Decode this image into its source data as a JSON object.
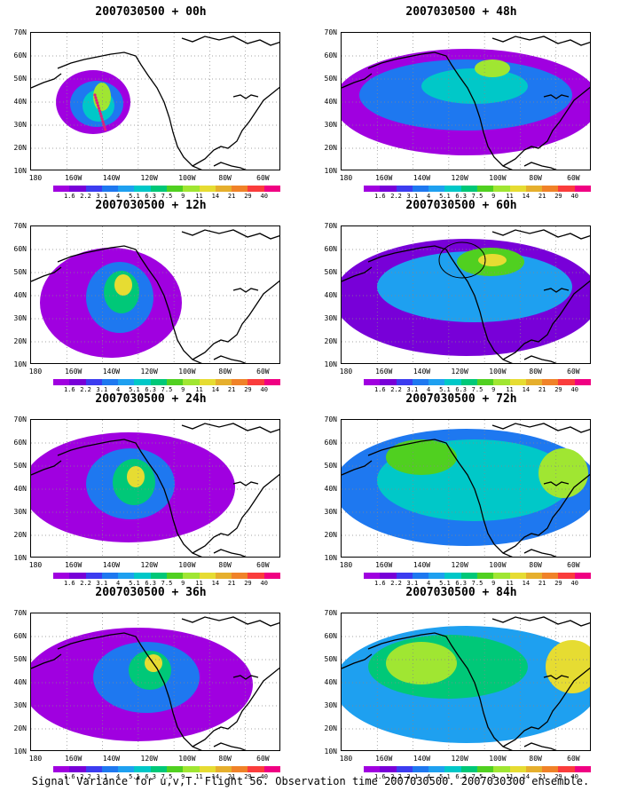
{
  "panels": [
    {
      "id": "p00",
      "title": "2007030500 + 00h"
    },
    {
      "id": "p48",
      "title": "2007030500 + 48h"
    },
    {
      "id": "p12",
      "title": "2007030500 + 12h"
    },
    {
      "id": "p60",
      "title": "2007030500 + 60h"
    },
    {
      "id": "p24",
      "title": "2007030500 + 24h"
    },
    {
      "id": "p72",
      "title": "2007030500 + 72h"
    },
    {
      "id": "p36",
      "title": "2007030500 + 36h"
    },
    {
      "id": "p84",
      "title": "2007030500 + 84h"
    }
  ],
  "lat_labels": [
    "70N",
    "60N",
    "50N",
    "40N",
    "30N",
    "20N",
    "10N"
  ],
  "lon_labels": [
    "180",
    "160W",
    "140W",
    "120W",
    "100W",
    "80W",
    "60W"
  ],
  "colorbar": {
    "labels": [
      "1.6",
      "2.2",
      "3.1",
      "4",
      "5.1",
      "6.3",
      "7.5",
      "9",
      "11",
      "14",
      "21",
      "29",
      "40"
    ],
    "colors": [
      "#a000e0",
      "#7800d8",
      "#3c3cf0",
      "#1e78f0",
      "#1ea0f0",
      "#00c8c8",
      "#00c878",
      "#50d020",
      "#a0e632",
      "#e6dc32",
      "#e6af2d",
      "#f08228",
      "#fa3c3c",
      "#f00082"
    ]
  },
  "caption": "Signal Variance for u,v,T. Flight 56. Observation time 2007030500. 2007030300 ensemble."
}
